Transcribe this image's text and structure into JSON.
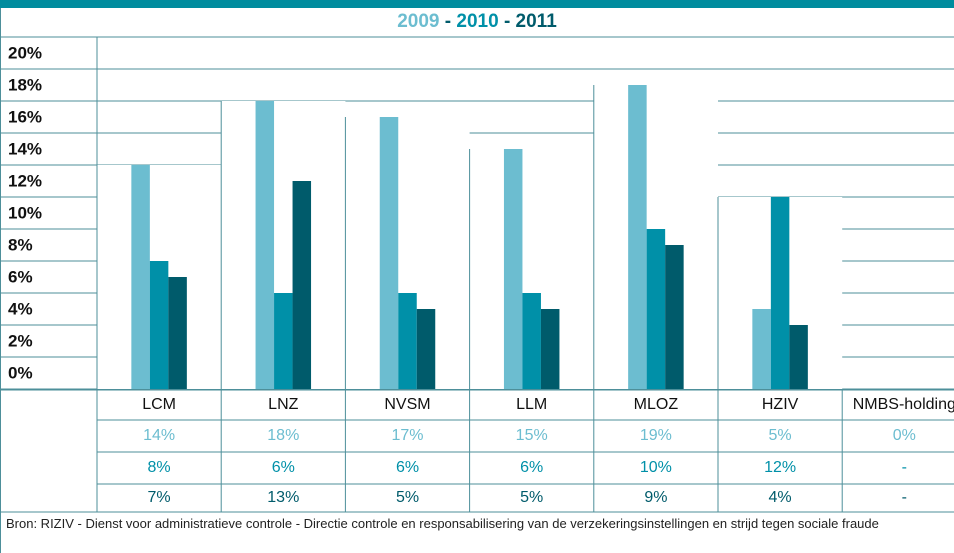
{
  "chart_data": {
    "type": "bar",
    "separator": "-",
    "categories": [
      "LCM",
      "LNZ",
      "NVSM",
      "LLM",
      "MLOZ",
      "HZIV",
      "NMBS-holding"
    ],
    "series": [
      {
        "name": "2009",
        "color": "#6cbdd0",
        "values": [
          14,
          18,
          17,
          15,
          19,
          5,
          0
        ],
        "value_labels": [
          "14%",
          "18%",
          "17%",
          "15%",
          "19%",
          "5%",
          "0%"
        ]
      },
      {
        "name": "2010",
        "color": "#0090a8",
        "values": [
          8,
          6,
          6,
          6,
          10,
          12,
          null
        ],
        "value_labels": [
          "8%",
          "6%",
          "6%",
          "6%",
          "10%",
          "12%",
          "-"
        ]
      },
      {
        "name": "2011",
        "color": "#005b6b",
        "values": [
          7,
          13,
          5,
          5,
          9,
          4,
          null
        ],
        "value_labels": [
          "7%",
          "13%",
          "5%",
          "5%",
          "9%",
          "4%",
          "-"
        ]
      }
    ],
    "ylim": [
      0,
      22
    ],
    "yticks": [
      {
        "value": 0,
        "label": "0%"
      },
      {
        "value": 2,
        "label": "2%"
      },
      {
        "value": 4,
        "label": "4%"
      },
      {
        "value": 6,
        "label": "6%"
      },
      {
        "value": 8,
        "label": "8%"
      },
      {
        "value": 10,
        "label": "10%"
      },
      {
        "value": 12,
        "label": "12%"
      },
      {
        "value": 14,
        "label": "14%"
      },
      {
        "value": 16,
        "label": "16%"
      },
      {
        "value": 18,
        "label": "18%"
      },
      {
        "value": 20,
        "label": "20%"
      }
    ],
    "grid": true,
    "source": "Bron: RIZIV - Dienst voor administratieve controle - Directie controle en responsabilisering van de verzekeringsinstellingen en strijd tegen sociale fraude"
  }
}
